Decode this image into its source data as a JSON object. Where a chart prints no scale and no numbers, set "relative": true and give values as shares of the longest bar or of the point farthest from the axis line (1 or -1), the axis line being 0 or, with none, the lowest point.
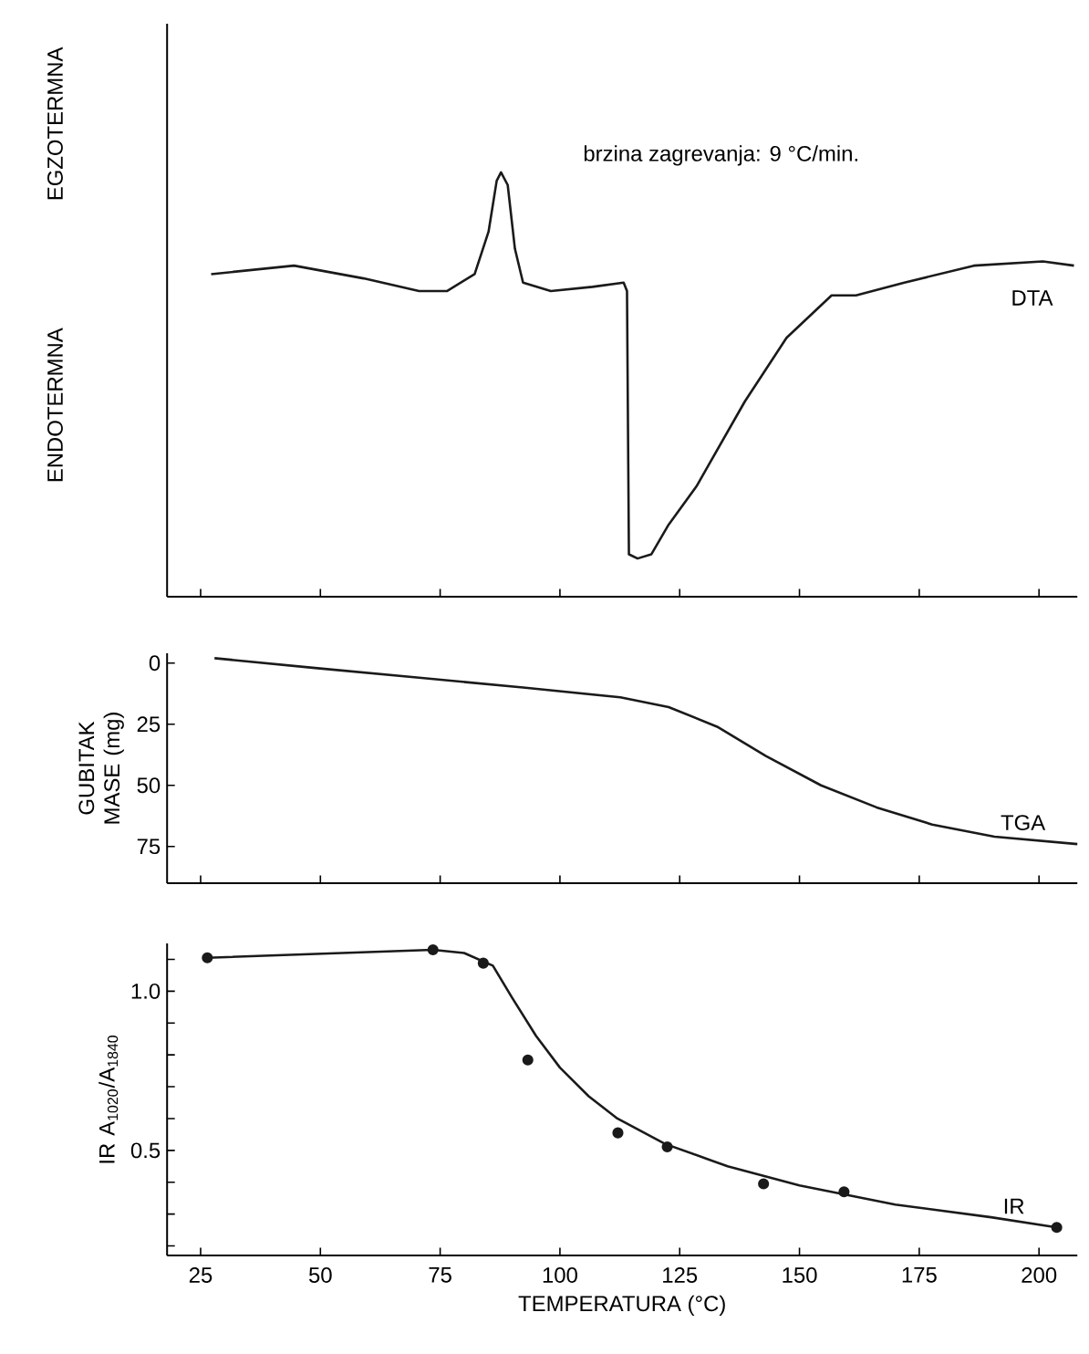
{
  "chart_data": [
    {
      "type": "line",
      "relative": true,
      "tick_labels": false,
      "x": [
        27.2,
        44.5,
        59,
        70.6,
        76.4,
        82.2,
        85.1,
        86.8,
        87.7,
        89.1,
        90.6,
        92.3,
        98.1,
        106.8,
        113.3,
        114.0,
        114.4,
        116.2,
        119.1,
        122.7,
        128.5,
        138.6,
        147.3,
        156.7,
        161.8,
        171.9,
        186.4,
        200.8,
        207.3
      ],
      "series": [
        {
          "name": "DTA",
          "color": "#1a1a1a",
          "values": [
            0.76,
            0.78,
            0.75,
            0.72,
            0.72,
            0.76,
            0.86,
            0.98,
            1.0,
            0.97,
            0.82,
            0.74,
            0.72,
            0.73,
            0.74,
            0.72,
            0.1,
            0.09,
            0.1,
            0.17,
            0.26,
            0.46,
            0.61,
            0.71,
            0.71,
            0.74,
            0.78,
            0.79,
            0.78
          ]
        }
      ],
      "xlim": [
        18,
        208
      ],
      "xticks": [
        25,
        50,
        75,
        100,
        125,
        150,
        175,
        200
      ],
      "annotations": [
        "EGZOTERMNA",
        "ENDOTERMNA",
        "brzina zagrevanja: 9 °C/min."
      ]
    },
    {
      "type": "line",
      "tick_labels": "y",
      "ylabel": "GUBITAK MASE (mg)",
      "x": [
        27.9,
        48.9,
        70.6,
        92.3,
        112.6,
        122.7,
        132.8,
        143,
        154.5,
        166.1,
        177.7,
        190.7,
        208
      ],
      "series": [
        {
          "name": "TGA",
          "color": "#1a1a1a",
          "values": [
            -2,
            2,
            6,
            10,
            14,
            18,
            26,
            38,
            50,
            59,
            66,
            71,
            74
          ]
        }
      ],
      "xlim": [
        18,
        208
      ],
      "xticks": [
        25,
        50,
        75,
        100,
        125,
        150,
        175,
        200
      ],
      "ylim": [
        90,
        -4
      ],
      "yticks": [
        0,
        25,
        50,
        75
      ]
    },
    {
      "type": "line",
      "xlabel": "TEMPERATURA (°C)",
      "ylabel": "IR A$_{1020}$/A$_{1840}$",
      "series": [
        {
          "type": "scatter",
          "color": "#1a1a1a",
          "x": [
            26.4,
            73.5,
            84.0,
            93.3,
            112.1,
            122.4,
            142.5,
            159.3,
            203.7
          ],
          "values": [
            1.105,
            1.13,
            1.088,
            0.784,
            0.555,
            0.511,
            0.395,
            0.37,
            0.258
          ]
        },
        {
          "type": "line",
          "name": "IR",
          "color": "#1a1a1a",
          "x": [
            26.4,
            73.5,
            80,
            86,
            90,
            95,
            100,
            106,
            112,
            122,
            135,
            150,
            170,
            190,
            203.7
          ],
          "values": [
            1.105,
            1.13,
            1.12,
            1.08,
            0.98,
            0.86,
            0.76,
            0.67,
            0.6,
            0.52,
            0.45,
            0.39,
            0.33,
            0.29,
            0.258
          ]
        }
      ],
      "xlim": [
        18,
        208
      ],
      "xticks": [
        25,
        50,
        75,
        100,
        125,
        150,
        175,
        200
      ],
      "ylim": [
        0.17,
        1.15
      ],
      "yticks": [
        {
          "value": 0.2,
          "label": null
        },
        {
          "value": 0.3,
          "label": null
        },
        {
          "value": 0.4,
          "label": null
        },
        {
          "value": 0.5,
          "label": "0.5"
        },
        {
          "value": 0.6,
          "label": null
        },
        {
          "value": 0.7,
          "label": null
        },
        {
          "value": 0.8,
          "label": null
        },
        {
          "value": 0.9,
          "label": null
        },
        {
          "value": 1,
          "label": "1.0"
        },
        {
          "value": 1.1,
          "label": null
        }
      ]
    }
  ]
}
